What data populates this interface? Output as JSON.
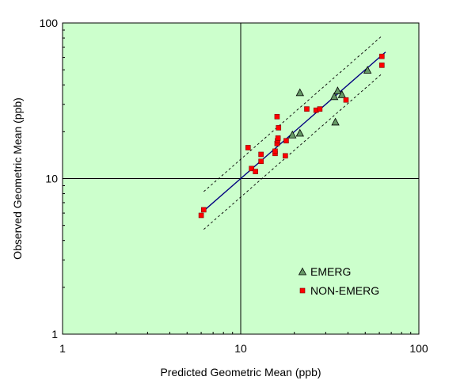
{
  "chart_data": {
    "type": "scatter",
    "xscale": "log",
    "yscale": "log",
    "xlim": [
      1,
      100
    ],
    "ylim": [
      1,
      100
    ],
    "xlabel": "Predicted Geometric Mean (ppb)",
    "ylabel": "Observed Geometric Mean (ppb)",
    "x_ticks": [
      "1",
      "10",
      "100"
    ],
    "y_ticks": [
      "1",
      "10",
      "100"
    ],
    "reference_lines": [
      10
    ],
    "grid": false,
    "legend_position": "bottom-right",
    "background_color": "#ccffcc",
    "series": [
      {
        "name": "EMERG",
        "marker": "triangle",
        "color": "#669966",
        "points": [
          [
            19.5,
            19.0
          ],
          [
            21.5,
            19.5
          ],
          [
            21.5,
            35.5
          ],
          [
            33.5,
            33.5
          ],
          [
            35.0,
            36.5
          ],
          [
            37.0,
            34.5
          ],
          [
            34.0,
            23.0
          ],
          [
            51.5,
            49.5
          ]
        ]
      },
      {
        "name": "NON-EMERG",
        "marker": "square",
        "color": "#ff0000",
        "points": [
          [
            6.0,
            5.8
          ],
          [
            6.2,
            6.3
          ],
          [
            11.0,
            15.8
          ],
          [
            11.5,
            11.6
          ],
          [
            12.1,
            11.1
          ],
          [
            13.0,
            12.9
          ],
          [
            13.0,
            14.3
          ],
          [
            15.6,
            14.5
          ],
          [
            15.6,
            15.0
          ],
          [
            16.0,
            16.8
          ],
          [
            16.1,
            17.5
          ],
          [
            16.2,
            18.2
          ],
          [
            16.3,
            21.2
          ],
          [
            16.0,
            25.0
          ],
          [
            17.8,
            14.0
          ],
          [
            18.0,
            17.5
          ],
          [
            23.5,
            28.0
          ],
          [
            26.5,
            27.5
          ],
          [
            27.8,
            28.0
          ],
          [
            39.0,
            32.0
          ],
          [
            62.0,
            61.0
          ],
          [
            62.0,
            53.5
          ]
        ]
      }
    ],
    "fit_line": {
      "color": "#000080",
      "x_range": [
        6.2,
        65
      ],
      "slope": 1.0,
      "intercept_factor": 1.0
    },
    "confidence_bands": {
      "style": "dashed",
      "color": "#000000",
      "x_range": [
        6.2,
        62
      ],
      "upper_factor": 1.33,
      "lower_factor": 0.76
    }
  }
}
